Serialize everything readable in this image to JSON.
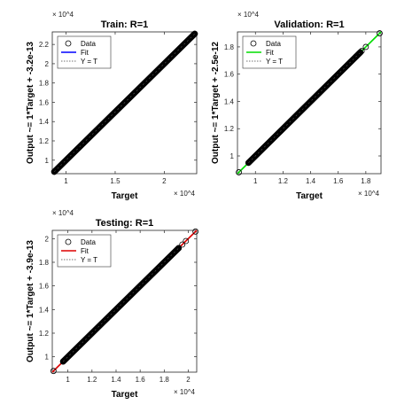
{
  "chart_data": [
    {
      "type": "scatter",
      "title": "Train: R=1",
      "xlabel": "Target",
      "ylabel": "Output ~= 1*Target + -3.2e-13",
      "exponent_label": "× 10^4",
      "xlim": [
        0.86,
        2.33
      ],
      "ylim": [
        0.86,
        2.33
      ],
      "xticks": [
        1,
        1.5,
        2
      ],
      "xtick_labels": [
        "1",
        "1.5",
        "2"
      ],
      "yticks": [
        1,
        1.2,
        1.4,
        1.6,
        1.8,
        2,
        2.2
      ],
      "ytick_labels": [
        "1",
        "1.2",
        "1.4",
        "1.6",
        "1.8",
        "2",
        "2.2"
      ],
      "fit_color": "#0000ff",
      "data_range": [
        0.88,
        2.31
      ],
      "fit": {
        "slope": 1,
        "intercept": 0
      },
      "legend": [
        "Data",
        "Fit",
        "Y = T"
      ],
      "legend_position": "top-left",
      "grid": false
    },
    {
      "type": "scatter",
      "title": "Validation: R=1",
      "xlabel": "Target",
      "ylabel": "Output ~= 1*Target + -2.5e-12",
      "exponent_label": "× 10^4",
      "xlim": [
        0.87,
        1.91
      ],
      "ylim": [
        0.87,
        1.91
      ],
      "xticks": [
        1,
        1.2,
        1.4,
        1.6,
        1.8
      ],
      "xtick_labels": [
        "1",
        "1.2",
        "1.4",
        "1.6",
        "1.8"
      ],
      "yticks": [
        1,
        1.2,
        1.4,
        1.6,
        1.8
      ],
      "ytick_labels": [
        "1",
        "1.2",
        "1.4",
        "1.6",
        "1.8"
      ],
      "fit_color": "#00dd00",
      "data_range": [
        0.95,
        1.76
      ],
      "outliers": [
        0.88,
        1.73,
        1.75,
        1.77,
        1.8,
        1.9
      ],
      "fit": {
        "slope": 1,
        "intercept": 0
      },
      "legend": [
        "Data",
        "Fit",
        "Y = T"
      ],
      "legend_position": "top-left",
      "grid": false
    },
    {
      "type": "scatter",
      "title": "Testing: R=1",
      "xlabel": "Target",
      "ylabel": "Output ~= 1*Target + -3.9e-13",
      "exponent_label": "× 10^4",
      "xlim": [
        0.87,
        2.07
      ],
      "ylim": [
        0.87,
        2.07
      ],
      "xticks": [
        1,
        1.2,
        1.4,
        1.6,
        1.8,
        2
      ],
      "xtick_labels": [
        "1",
        "1.2",
        "1.4",
        "1.6",
        "1.8",
        "2"
      ],
      "yticks": [
        1,
        1.2,
        1.4,
        1.6,
        1.8,
        2
      ],
      "ytick_labels": [
        "1",
        "1.2",
        "1.4",
        "1.6",
        "1.8",
        "2"
      ],
      "fit_color": "#dd0000",
      "data_range": [
        0.96,
        1.92
      ],
      "outliers": [
        0.88,
        1.95,
        1.98,
        2.06
      ],
      "fit": {
        "slope": 1,
        "intercept": 0
      },
      "legend": [
        "Data",
        "Fit",
        "Y = T"
      ],
      "legend_position": "top-left",
      "grid": false
    }
  ]
}
